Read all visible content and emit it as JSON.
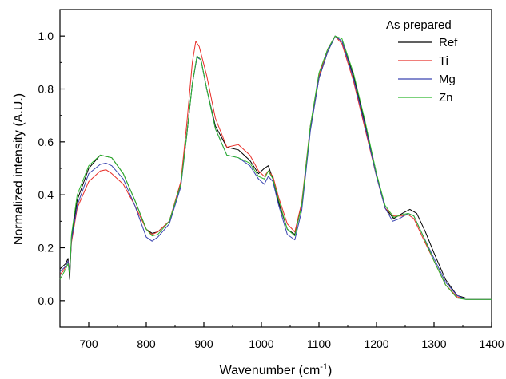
{
  "chart_data": {
    "type": "line",
    "xlabel": "Wavenumber (cm",
    "xlabel_sup": "-1",
    "xlabel_tail": ")",
    "ylabel": "Normalized intensity (A.U.)",
    "xlim": [
      650,
      1400
    ],
    "ylim": [
      -0.1,
      1.1
    ],
    "x_ticks": [
      700,
      800,
      900,
      1000,
      1100,
      1200,
      1300,
      1400
    ],
    "y_ticks": [
      0.0,
      0.2,
      0.4,
      0.6,
      0.8,
      1.0
    ],
    "x_tick_labels": [
      "700",
      "800",
      "900",
      "1000",
      "1100",
      "1200",
      "1300",
      "1400"
    ],
    "y_tick_labels": [
      "0.0",
      "0.2",
      "0.4",
      "0.6",
      "0.8",
      "1.0"
    ],
    "grid": false,
    "legend": {
      "title": "As prepared",
      "position": "top-right"
    },
    "series": [
      {
        "name": "Ref",
        "color": "#000000",
        "x": [
          650,
          655,
          660,
          664,
          667,
          670,
          680,
          700,
          720,
          740,
          760,
          780,
          800,
          810,
          820,
          840,
          860,
          870,
          880,
          888,
          895,
          905,
          920,
          940,
          960,
          980,
          995,
          1005,
          1012,
          1020,
          1030,
          1045,
          1058,
          1070,
          1085,
          1100,
          1115,
          1128,
          1140,
          1160,
          1180,
          1200,
          1215,
          1230,
          1245,
          1258,
          1270,
          1285,
          1300,
          1320,
          1340,
          1355,
          1370,
          1400
        ],
        "y": [
          0.12,
          0.13,
          0.14,
          0.16,
          0.08,
          0.24,
          0.38,
          0.5,
          0.55,
          0.54,
          0.48,
          0.38,
          0.27,
          0.255,
          0.26,
          0.3,
          0.44,
          0.62,
          0.82,
          0.92,
          0.91,
          0.8,
          0.66,
          0.58,
          0.57,
          0.53,
          0.48,
          0.5,
          0.51,
          0.46,
          0.37,
          0.27,
          0.25,
          0.36,
          0.65,
          0.84,
          0.94,
          1.0,
          0.98,
          0.85,
          0.67,
          0.48,
          0.35,
          0.31,
          0.33,
          0.345,
          0.33,
          0.26,
          0.18,
          0.08,
          0.02,
          0.01,
          0.01,
          0.01
        ]
      },
      {
        "name": "Ti",
        "color": "#e8302a",
        "x": [
          650,
          655,
          660,
          664,
          667,
          670,
          680,
          700,
          720,
          730,
          740,
          760,
          780,
          800,
          810,
          820,
          840,
          860,
          870,
          880,
          886,
          892,
          905,
          920,
          940,
          960,
          980,
          995,
          1005,
          1012,
          1020,
          1030,
          1045,
          1058,
          1070,
          1085,
          1100,
          1115,
          1128,
          1140,
          1160,
          1180,
          1200,
          1215,
          1230,
          1245,
          1255,
          1265,
          1280,
          1300,
          1320,
          1340,
          1355,
          1370,
          1400
        ],
        "y": [
          0.1,
          0.11,
          0.13,
          0.15,
          0.12,
          0.22,
          0.35,
          0.45,
          0.49,
          0.495,
          0.48,
          0.44,
          0.36,
          0.27,
          0.25,
          0.26,
          0.3,
          0.45,
          0.66,
          0.9,
          0.98,
          0.96,
          0.85,
          0.69,
          0.58,
          0.59,
          0.55,
          0.49,
          0.47,
          0.49,
          0.47,
          0.39,
          0.29,
          0.26,
          0.37,
          0.66,
          0.85,
          0.95,
          1.0,
          0.97,
          0.83,
          0.65,
          0.47,
          0.35,
          0.32,
          0.32,
          0.325,
          0.31,
          0.24,
          0.15,
          0.06,
          0.015,
          0.005,
          0.005,
          0.005
        ]
      },
      {
        "name": "Mg",
        "color": "#3a44b0",
        "x": [
          650,
          655,
          660,
          664,
          667,
          670,
          680,
          700,
          720,
          730,
          740,
          760,
          780,
          800,
          810,
          820,
          840,
          860,
          870,
          880,
          888,
          895,
          905,
          920,
          940,
          960,
          980,
          995,
          1005,
          1012,
          1020,
          1030,
          1045,
          1058,
          1070,
          1085,
          1100,
          1115,
          1128,
          1140,
          1160,
          1180,
          1200,
          1215,
          1228,
          1240,
          1255,
          1265,
          1280,
          1300,
          1320,
          1340,
          1355,
          1370,
          1400
        ],
        "y": [
          0.11,
          0.12,
          0.13,
          0.15,
          0.11,
          0.23,
          0.36,
          0.48,
          0.515,
          0.52,
          0.51,
          0.46,
          0.36,
          0.24,
          0.225,
          0.24,
          0.29,
          0.43,
          0.62,
          0.82,
          0.92,
          0.91,
          0.8,
          0.65,
          0.55,
          0.54,
          0.51,
          0.46,
          0.44,
          0.47,
          0.45,
          0.36,
          0.25,
          0.23,
          0.34,
          0.64,
          0.84,
          0.94,
          1.0,
          0.98,
          0.84,
          0.66,
          0.47,
          0.35,
          0.3,
          0.31,
          0.33,
          0.32,
          0.25,
          0.16,
          0.07,
          0.02,
          0.005,
          0.005,
          0.005
        ]
      },
      {
        "name": "Zn",
        "color": "#2eb82e",
        "x": [
          650,
          655,
          660,
          664,
          667,
          670,
          680,
          700,
          720,
          740,
          760,
          780,
          800,
          810,
          820,
          840,
          860,
          870,
          880,
          888,
          895,
          905,
          920,
          940,
          960,
          980,
          995,
          1005,
          1012,
          1020,
          1030,
          1045,
          1058,
          1070,
          1085,
          1100,
          1115,
          1128,
          1140,
          1160,
          1180,
          1200,
          1215,
          1230,
          1245,
          1255,
          1265,
          1280,
          1300,
          1320,
          1340,
          1355,
          1370,
          1400
        ],
        "y": [
          0.08,
          0.1,
          0.12,
          0.14,
          0.1,
          0.25,
          0.4,
          0.51,
          0.55,
          0.54,
          0.48,
          0.38,
          0.27,
          0.245,
          0.25,
          0.3,
          0.44,
          0.62,
          0.82,
          0.925,
          0.91,
          0.8,
          0.65,
          0.55,
          0.54,
          0.52,
          0.47,
          0.46,
          0.49,
          0.46,
          0.38,
          0.27,
          0.245,
          0.36,
          0.66,
          0.86,
          0.95,
          1.0,
          0.99,
          0.86,
          0.68,
          0.48,
          0.36,
          0.315,
          0.325,
          0.33,
          0.32,
          0.25,
          0.15,
          0.06,
          0.01,
          0.005,
          0.005,
          0.005
        ]
      }
    ]
  }
}
